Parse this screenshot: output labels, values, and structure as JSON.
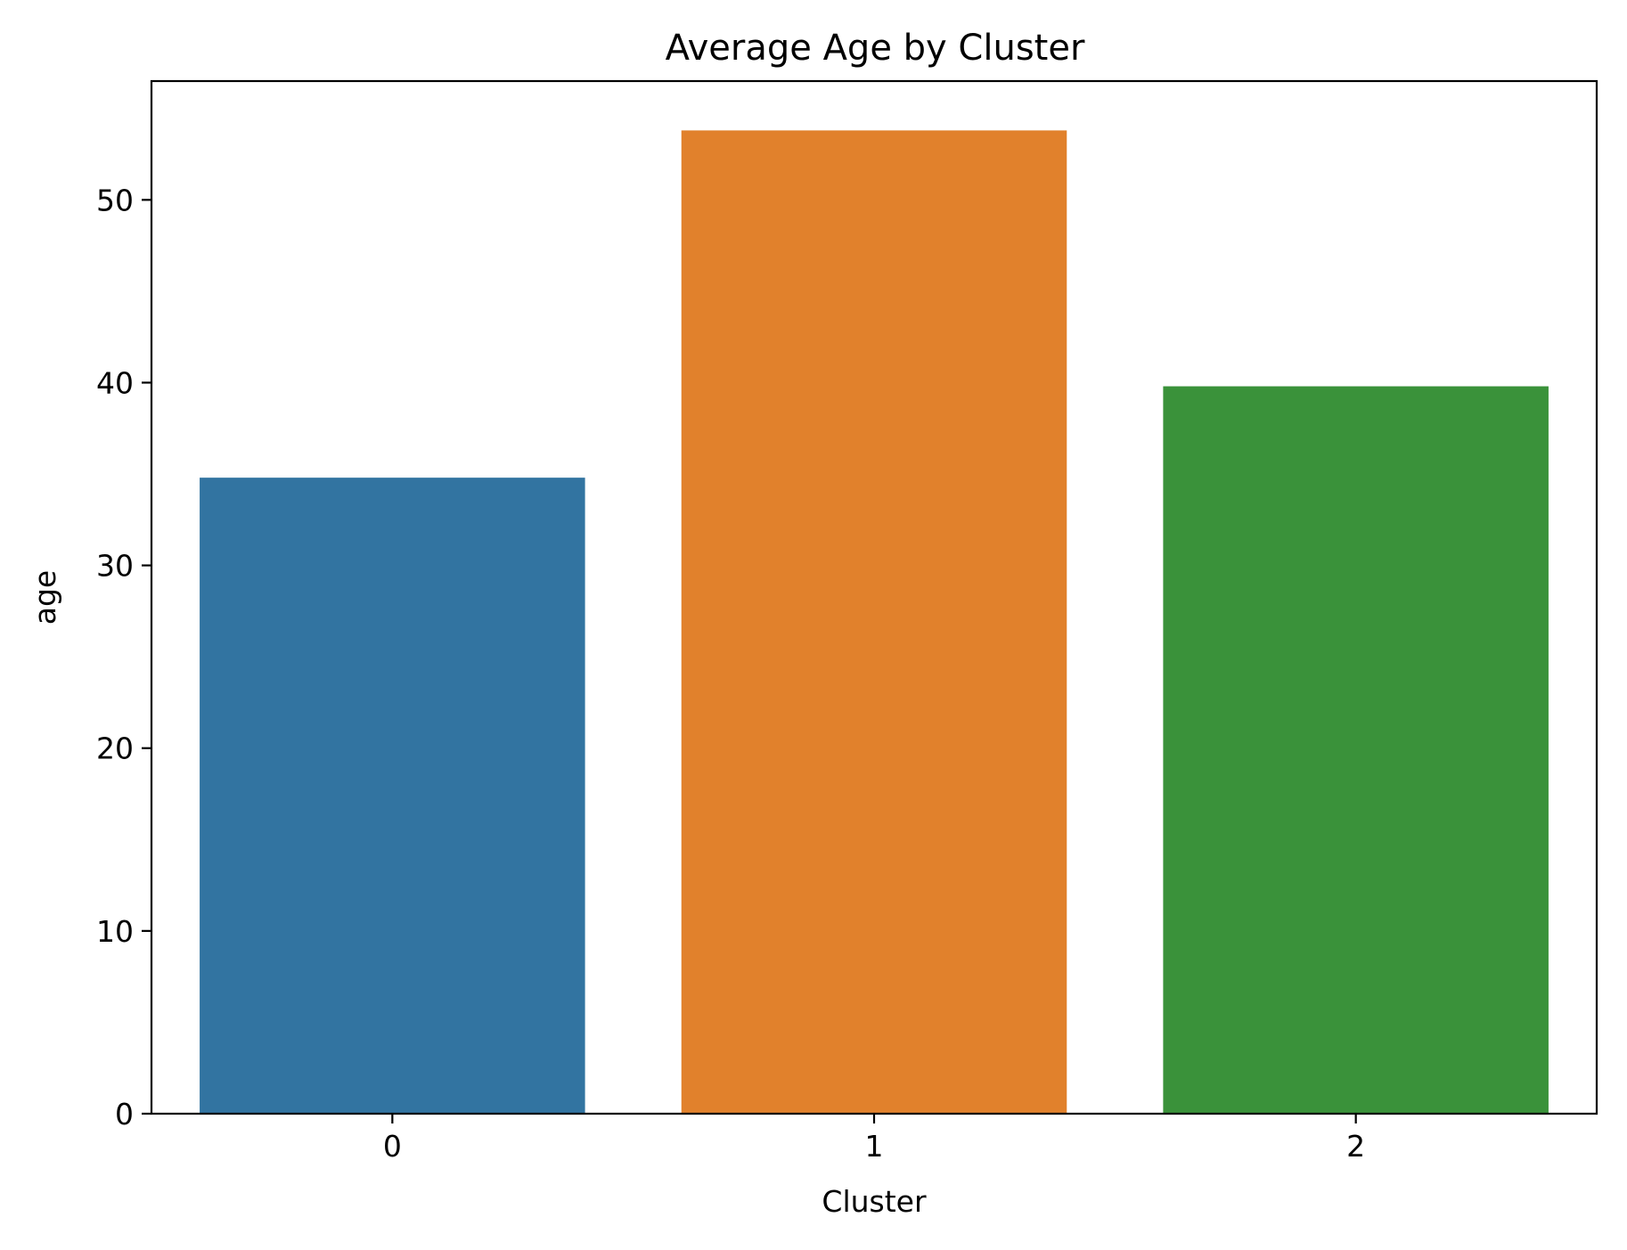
{
  "chart_data": {
    "type": "bar",
    "title": "Average Age by Cluster",
    "xlabel": "Cluster",
    "ylabel": "age",
    "categories": [
      "0",
      "1",
      "2"
    ],
    "values": [
      34.8,
      53.8,
      39.8
    ],
    "colors": [
      "#3274a1",
      "#e1812c",
      "#3a923a"
    ],
    "ylim": [
      0,
      56.5
    ],
    "yticks": [
      0,
      10,
      20,
      30,
      40,
      50
    ],
    "grid": false,
    "legend": "none"
  }
}
